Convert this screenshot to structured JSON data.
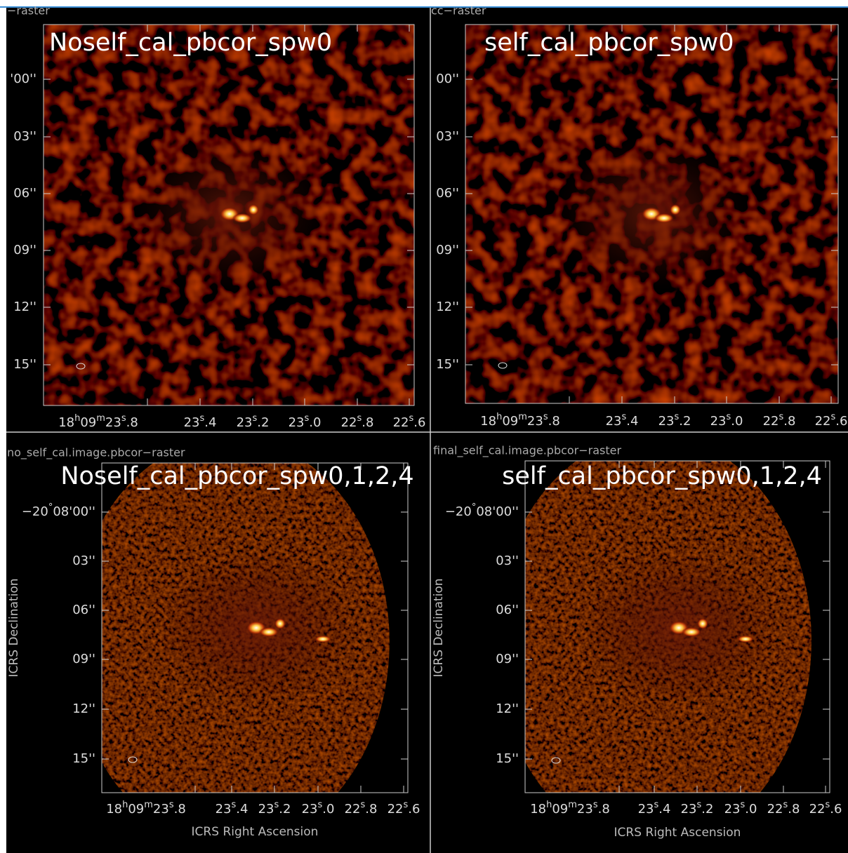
{
  "panels": [
    {
      "raster_label": "−raster",
      "title": "Noself_cal_pbcor_spw0",
      "yticks": [
        "'00''",
        "03''",
        "06''",
        "09''",
        "12''",
        "15''"
      ],
      "xticks": [
        "18h09m23s.8",
        "23s.4",
        "23s.2",
        "23s.0",
        "22s.8",
        "22s.6"
      ]
    },
    {
      "raster_label": "cc−raster",
      "title": "self_cal_pbcor_spw0",
      "yticks": [
        "00''",
        "03''",
        "06''",
        "09''",
        "12''",
        "15''"
      ],
      "xticks": [
        "18h09m23s.8",
        "23s.4",
        "23s.2",
        "23s.0",
        "22s.8",
        "22s.6"
      ]
    },
    {
      "raster_label": "no_self_cal.image.pbcor−raster",
      "title": "Noself_cal_pbcor_spw0,1,2,4",
      "yticks": [
        "−20°08'00''",
        "03''",
        "06''",
        "09''",
        "12''",
        "15''"
      ],
      "xticks": [
        "18h09m23s.8",
        "23s.4",
        "23s.2",
        "23s.0",
        "22s.8",
        "22s.6"
      ],
      "xlabel": "ICRS Right Ascension",
      "ylabel": "ICRS Declination"
    },
    {
      "raster_label": "final_self_cal.image.pbcor−raster",
      "title": "self_cal_pbcor_spw0,1,2,4",
      "yticks": [
        "−20°08'00''",
        "03''",
        "06''",
        "09''",
        "12''",
        "15''"
      ],
      "xticks": [
        "18h09m23s.8",
        "23s.4",
        "23s.2",
        "23s.0",
        "22s.8",
        "22s.6"
      ],
      "xlabel": "ICRS Right Ascension",
      "ylabel": "ICRS Declination"
    }
  ]
}
